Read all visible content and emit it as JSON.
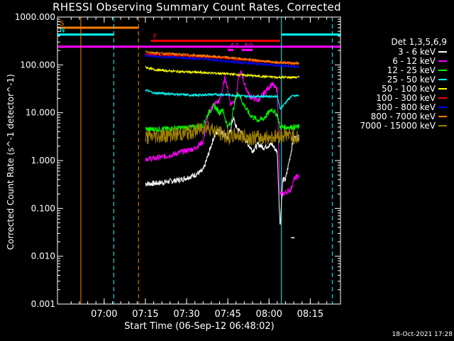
{
  "chart_data": {
    "type": "line",
    "title": "RHESSI Observing Summary Count Rates, Corrected",
    "xlabel": "Start Time (06-Sep-12 06:48:02)",
    "ylabel": "Corrected Count Rate (s^-1 detector^-1)",
    "y_scale": "log",
    "ylim": [
      0.001,
      1000
    ],
    "xlim_minutes": [
      -5,
      98
    ],
    "x_ticks": [
      "07:00",
      "07:15",
      "07:30",
      "07:45",
      "08:00",
      "08:15"
    ],
    "x_tick_minutes": [
      12,
      27,
      42,
      57,
      72,
      87
    ],
    "y_ticks": [
      "1000.000",
      "100.000",
      "10.000",
      "1.000",
      "0.100",
      "0.010",
      "0.001"
    ],
    "y_tick_values": [
      1000,
      100,
      10,
      1,
      0.1,
      0.01,
      0.001
    ],
    "legend_title": "Det 1,3,5,6,9",
    "legend_position": "right",
    "data_start_minute": 27,
    "data_end_minute": 83,
    "series": [
      {
        "name": "3 - 6 keV",
        "color": "#ffffff",
        "points": [
          [
            27,
            0.33
          ],
          [
            30,
            0.33
          ],
          [
            35,
            0.36
          ],
          [
            40,
            0.4
          ],
          [
            45,
            0.5
          ],
          [
            48,
            0.62
          ],
          [
            50,
            1.4
          ],
          [
            52,
            3.2
          ],
          [
            54,
            4.5
          ],
          [
            55,
            3.8
          ],
          [
            57,
            3
          ],
          [
            58,
            4.5
          ],
          [
            59,
            8
          ],
          [
            60,
            5
          ],
          [
            62,
            3.8
          ],
          [
            63,
            2.9
          ],
          [
            66,
            1.6
          ],
          [
            68,
            2.2
          ],
          [
            70,
            1.9
          ],
          [
            73,
            2.2
          ],
          [
            75,
            1.5
          ],
          [
            76,
            0.04
          ],
          [
            77,
            0.4
          ],
          [
            78,
            0.4
          ],
          [
            81,
            3
          ],
          [
            83,
            3
          ]
        ]
      },
      {
        "name": "6 - 12 keV",
        "color": "#ff00ff",
        "points": [
          [
            27,
            1.1
          ],
          [
            30,
            1.1
          ],
          [
            35,
            1.25
          ],
          [
            40,
            1.5
          ],
          [
            45,
            1.8
          ],
          [
            48,
            2.5
          ],
          [
            50,
            10
          ],
          [
            52,
            15
          ],
          [
            54,
            18
          ],
          [
            55,
            30
          ],
          [
            56,
            55
          ],
          [
            57,
            30
          ],
          [
            58,
            15
          ],
          [
            60,
            20
          ],
          [
            61,
            60
          ],
          [
            62,
            70
          ],
          [
            63,
            40
          ],
          [
            65,
            22
          ],
          [
            68,
            18
          ],
          [
            70,
            25
          ],
          [
            73,
            40
          ],
          [
            75,
            30
          ],
          [
            76,
            0.2
          ],
          [
            77,
            0.2
          ],
          [
            80,
            0.25
          ],
          [
            81,
            0.4
          ],
          [
            83,
            0.5
          ]
        ]
      },
      {
        "name": "12 - 25 keV",
        "color": "#00ff00",
        "points": [
          [
            27,
            4.5
          ],
          [
            30,
            4.5
          ],
          [
            35,
            4.6
          ],
          [
            40,
            4.8
          ],
          [
            45,
            5
          ],
          [
            48,
            5.5
          ],
          [
            50,
            10
          ],
          [
            52,
            14
          ],
          [
            54,
            10
          ],
          [
            55,
            12
          ],
          [
            57,
            5
          ],
          [
            58,
            6
          ],
          [
            60,
            22
          ],
          [
            61,
            26
          ],
          [
            62,
            18
          ],
          [
            65,
            9
          ],
          [
            68,
            7
          ],
          [
            70,
            7.5
          ],
          [
            73,
            12
          ],
          [
            75,
            9
          ],
          [
            76,
            5
          ],
          [
            83,
            5
          ]
        ]
      },
      {
        "name": "25 - 50 keV",
        "color": "#00ffff",
        "points": [
          [
            27,
            30
          ],
          [
            30,
            26
          ],
          [
            35,
            25
          ],
          [
            40,
            24
          ],
          [
            45,
            23
          ],
          [
            50,
            24
          ],
          [
            55,
            24
          ],
          [
            60,
            23
          ],
          [
            65,
            22
          ],
          [
            70,
            22
          ],
          [
            75,
            22
          ],
          [
            76,
            12
          ],
          [
            80,
            22
          ],
          [
            83,
            23
          ]
        ]
      },
      {
        "name": "50 - 100 keV",
        "color": "#ffff00",
        "points": [
          [
            27,
            90
          ],
          [
            30,
            80
          ],
          [
            35,
            75
          ],
          [
            40,
            72
          ],
          [
            45,
            70
          ],
          [
            50,
            68
          ],
          [
            55,
            66
          ],
          [
            60,
            63
          ],
          [
            65,
            60
          ],
          [
            70,
            57
          ],
          [
            75,
            55
          ],
          [
            80,
            55
          ],
          [
            83,
            55
          ]
        ]
      },
      {
        "name": "100 - 300 keV",
        "color": "#ff0000",
        "points": [
          [
            27,
            170
          ],
          [
            30,
            165
          ],
          [
            35,
            160
          ],
          [
            40,
            155
          ],
          [
            45,
            152
          ],
          [
            50,
            148
          ],
          [
            55,
            140
          ],
          [
            60,
            132
          ],
          [
            65,
            125
          ],
          [
            70,
            118
          ],
          [
            75,
            112
          ],
          [
            80,
            108
          ],
          [
            83,
            105
          ]
        ]
      },
      {
        "name": "300 - 800 keV",
        "color": "#0000ff",
        "points": [
          [
            27,
            160
          ],
          [
            30,
            150
          ],
          [
            35,
            145
          ],
          [
            40,
            140
          ],
          [
            45,
            135
          ],
          [
            50,
            130
          ],
          [
            55,
            122
          ],
          [
            60,
            115
          ],
          [
            65,
            108
          ],
          [
            70,
            102
          ],
          [
            75,
            97
          ],
          [
            80,
            93
          ],
          [
            83,
            90
          ]
        ]
      },
      {
        "name": "800 - 7000 keV",
        "color": "#ff8000",
        "points": [
          [
            27,
            190
          ],
          [
            30,
            180
          ],
          [
            35,
            172
          ],
          [
            40,
            165
          ],
          [
            45,
            158
          ],
          [
            50,
            152
          ],
          [
            55,
            145
          ],
          [
            60,
            138
          ],
          [
            65,
            128
          ],
          [
            70,
            120
          ],
          [
            75,
            114
          ],
          [
            80,
            110
          ],
          [
            83,
            108
          ]
        ]
      },
      {
        "name": "7000 - 15000 keV",
        "color": "#a08000",
        "points": [
          [
            27,
            3
          ],
          [
            30,
            3.2
          ],
          [
            35,
            3.4
          ],
          [
            40,
            3.6
          ],
          [
            45,
            4
          ],
          [
            48,
            5
          ],
          [
            50,
            5
          ],
          [
            53,
            4
          ],
          [
            55,
            3.5
          ],
          [
            58,
            3
          ],
          [
            60,
            3.5
          ],
          [
            65,
            3
          ],
          [
            70,
            3
          ],
          [
            75,
            3.2
          ],
          [
            78,
            3.5
          ],
          [
            83,
            3
          ]
        ]
      }
    ],
    "stray_points": [
      {
        "x": 80,
        "y": 0.025,
        "color": "#ffffff"
      }
    ],
    "vertical_lines": [
      {
        "minute": 3.5,
        "color": "#ff8000",
        "style": "solid"
      },
      {
        "minute": 15.5,
        "color": "#00ffff",
        "style": "dashed"
      },
      {
        "minute": 24.5,
        "color": "#ff8000",
        "style": "dashed"
      },
      {
        "minute": 76.5,
        "color": "#00ffff",
        "style": "solid"
      },
      {
        "minute": 95,
        "color": "#00ffff",
        "style": "dashed"
      },
      {
        "minute": -5,
        "color": "#00ffff",
        "style": "solid"
      }
    ],
    "flag_bars": [
      {
        "label": "S",
        "color": "#ff8000",
        "x0": -5,
        "x1": 24.5,
        "y": 600
      },
      {
        "label": "N",
        "color": "#00ffff",
        "x0": -5,
        "x1": 15.5,
        "y": 430
      },
      {
        "label": "",
        "color": "#00ffff",
        "x0": 76.5,
        "x1": 98,
        "y": 430
      },
      {
        "label": "F",
        "color": "#ff0000",
        "x0": 29,
        "x1": 76,
        "y": 320
      },
      {
        "label": "",
        "color": "#ff00ff",
        "x0": -5,
        "x1": 98,
        "y": 240
      },
      {
        "label": "A1",
        "color": "#ff00ff",
        "x0": 57,
        "x1": 59,
        "y": 205
      },
      {
        "label": "A0",
        "color": "#ff00ff",
        "x0": 62,
        "x1": 66,
        "y": 205
      }
    ],
    "grid": false
  },
  "footer": {
    "timestamp": "18-Oct-2021 17:28"
  }
}
